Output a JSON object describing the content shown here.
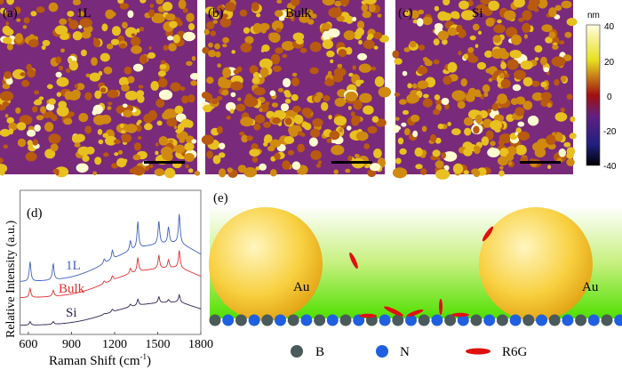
{
  "panels_top": [
    {
      "letter": "(a)",
      "label": "1L"
    },
    {
      "letter": "(b)",
      "label": "Bulk"
    },
    {
      "letter": "(c)",
      "label": "Si"
    }
  ],
  "colorbar": {
    "unit": "nm",
    "ticks": [
      "40",
      "20",
      "0",
      "-20",
      "-40"
    ],
    "colors": [
      "#fffce0",
      "#f0e020",
      "#c89000",
      "#a01010",
      "#602080",
      "#202080",
      "#000000"
    ]
  },
  "chart_data": {
    "type": "line",
    "letter": "(d)",
    "xlabel": "Raman Shift (cm",
    "xlabel_sup": "-1",
    "xlabel_close": ")",
    "ylabel": "Relative Intensity (a.u.)",
    "xlim": [
      543,
      1800
    ],
    "xticks": [
      "600",
      "900",
      "1200",
      "1500",
      "1800"
    ],
    "xtick_values": [
      600,
      900,
      1200,
      1500,
      1800
    ],
    "peaks_cm-1": [
      612,
      773,
      1128,
      1185,
      1310,
      1362,
      1508,
      1575,
      1650
    ],
    "series": [
      {
        "name": "1L",
        "color": "#4060c0"
      },
      {
        "name": "Bulk",
        "color": "#e03030"
      },
      {
        "name": "Si",
        "color": "#302050"
      }
    ]
  },
  "schematic": {
    "letter": "(e)",
    "particle_label": "Au",
    "legend": [
      {
        "label": "B",
        "color": "#4a5a5a"
      },
      {
        "label": "N",
        "color": "#2060e0"
      },
      {
        "label": "R6G",
        "color": "#e01010"
      }
    ]
  }
}
